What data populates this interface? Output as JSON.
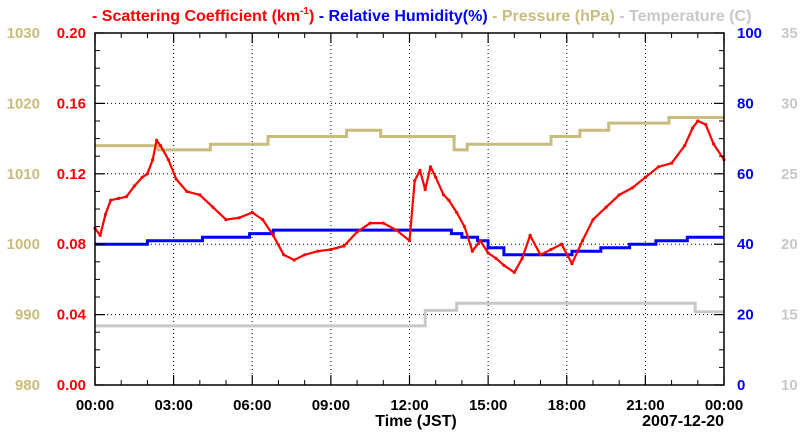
{
  "chart_data": {
    "type": "line",
    "legend": [
      {
        "name": "Scattering Coefficient (km",
        "sup": "-1",
        "suffix": ")",
        "color": "#ff0000"
      },
      {
        "name": "Relative Humidity(%)",
        "color": "#0000ff"
      },
      {
        "name": "Pressure (hPa)",
        "color": "#c8bd7e"
      },
      {
        "name": "Temperature (C)",
        "color": "#c8c8c8"
      }
    ],
    "xlabel": "Time (JST)",
    "date_label": "2007-12-20",
    "x_range_hours": [
      0,
      24
    ],
    "x_ticks": [
      "00:00",
      "03:00",
      "06:00",
      "09:00",
      "12:00",
      "15:00",
      "18:00",
      "21:00",
      "00:00"
    ],
    "axes": {
      "pressure": {
        "range": [
          980,
          1030
        ],
        "ticks": [
          "980",
          "990",
          "1000",
          "1010",
          "1020",
          "1030"
        ],
        "color": "#c8bd7e"
      },
      "scattering": {
        "range": [
          0,
          0.2
        ],
        "ticks": [
          "0.00",
          "0.04",
          "0.08",
          "0.12",
          "0.16",
          "0.20"
        ],
        "color": "#ff0000"
      },
      "humidity": {
        "range": [
          0,
          100
        ],
        "ticks": [
          "0",
          "20",
          "40",
          "60",
          "80",
          "100"
        ],
        "color": "#0000ff"
      },
      "temperature": {
        "range": [
          10,
          35
        ],
        "ticks": [
          "10",
          "15",
          "20",
          "25",
          "30",
          "35"
        ],
        "color": "#c8c8c8"
      }
    },
    "series": [
      {
        "name": "Scattering Coefficient",
        "axis": "scattering",
        "color": "#ff0000",
        "x": [
          0,
          0.2,
          0.4,
          0.6,
          0.9,
          1.2,
          1.5,
          1.8,
          2.0,
          2.2,
          2.35,
          2.5,
          2.8,
          3.1,
          3.5,
          4.0,
          4.5,
          5.0,
          5.5,
          6.0,
          6.4,
          6.8,
          7.2,
          7.6,
          8.0,
          8.5,
          9.0,
          9.5,
          10.0,
          10.5,
          11.0,
          11.5,
          12.0,
          12.2,
          12.4,
          12.6,
          12.8,
          13.0,
          13.3,
          13.5,
          13.8,
          14.1,
          14.4,
          14.7,
          15.0,
          15.3,
          15.6,
          16.0,
          16.3,
          16.6,
          17.0,
          17.4,
          17.8,
          18.2,
          18.6,
          19.0,
          19.5,
          20.0,
          20.5,
          21.0,
          21.5,
          22.0,
          22.5,
          22.8,
          23.0,
          23.3,
          23.6,
          24.0
        ],
        "values": [
          0.089,
          0.085,
          0.097,
          0.105,
          0.106,
          0.107,
          0.113,
          0.118,
          0.12,
          0.128,
          0.139,
          0.136,
          0.128,
          0.117,
          0.11,
          0.108,
          0.101,
          0.094,
          0.095,
          0.098,
          0.094,
          0.085,
          0.074,
          0.071,
          0.074,
          0.076,
          0.077,
          0.079,
          0.087,
          0.092,
          0.092,
          0.088,
          0.082,
          0.116,
          0.122,
          0.111,
          0.124,
          0.118,
          0.108,
          0.105,
          0.098,
          0.09,
          0.076,
          0.082,
          0.075,
          0.072,
          0.068,
          0.064,
          0.072,
          0.085,
          0.074,
          0.077,
          0.08,
          0.069,
          0.082,
          0.094,
          0.101,
          0.108,
          0.112,
          0.118,
          0.124,
          0.126,
          0.136,
          0.146,
          0.15,
          0.148,
          0.137,
          0.128
        ]
      },
      {
        "name": "Relative Humidity(%)",
        "axis": "humidity",
        "color": "#0000ff",
        "steps": [
          [
            0,
            40
          ],
          [
            2.0,
            41
          ],
          [
            4.1,
            42
          ],
          [
            5.9,
            43
          ],
          [
            6.8,
            44
          ],
          [
            13.6,
            43
          ],
          [
            14.0,
            42
          ],
          [
            14.6,
            41
          ],
          [
            15.0,
            39
          ],
          [
            15.6,
            37
          ],
          [
            18.2,
            38
          ],
          [
            19.3,
            39
          ],
          [
            20.4,
            40
          ],
          [
            21.4,
            41
          ],
          [
            22.6,
            42
          ],
          [
            24.0,
            42
          ]
        ]
      },
      {
        "name": "Pressure (hPa)",
        "axis": "pressure",
        "color": "#c8bd7e",
        "steps": [
          [
            0,
            1014
          ],
          [
            2.4,
            1013.4
          ],
          [
            4.4,
            1014.2
          ],
          [
            6.6,
            1015.3
          ],
          [
            9.6,
            1016.2
          ],
          [
            10.9,
            1015.3
          ],
          [
            13.7,
            1013.4
          ],
          [
            14.2,
            1014.2
          ],
          [
            17.4,
            1015.3
          ],
          [
            18.5,
            1016.2
          ],
          [
            19.6,
            1017.2
          ],
          [
            21.9,
            1018.0
          ],
          [
            24.0,
            1018.0
          ]
        ]
      },
      {
        "name": "Temperature (C)",
        "axis": "temperature",
        "color": "#c8c8c8",
        "steps": [
          [
            0,
            14.2
          ],
          [
            12.6,
            14.6
          ],
          [
            12.6,
            15.3
          ],
          [
            13.8,
            15.3
          ],
          [
            13.8,
            15.8
          ],
          [
            22.9,
            15.8
          ],
          [
            22.9,
            15.2
          ],
          [
            24.0,
            15.2
          ]
        ]
      }
    ]
  }
}
